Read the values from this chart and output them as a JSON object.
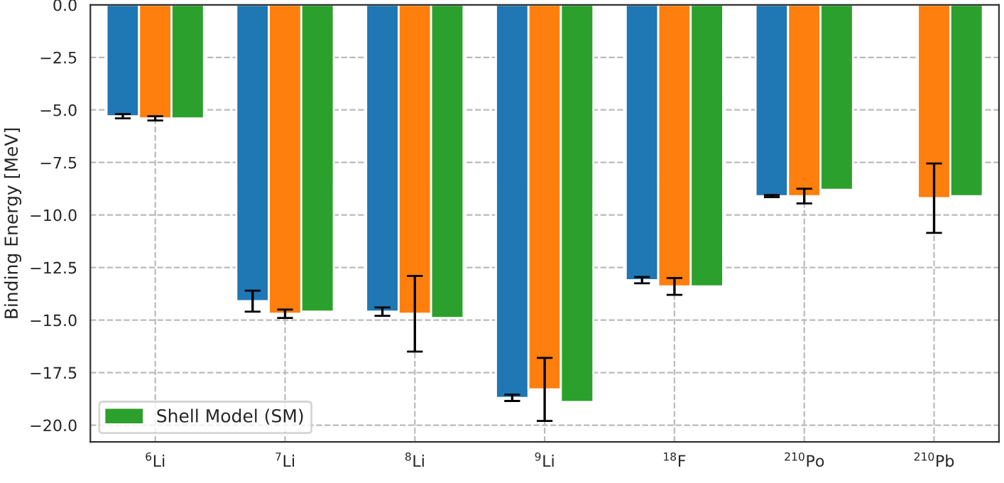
{
  "chart_data": {
    "type": "bar",
    "ylabel": "Binding Energy [MeV]",
    "categories": [
      "$^{6}$Li",
      "$^{7}$Li",
      "$^{8}$Li",
      "$^{9}$Li",
      "$^{18}$F",
      "$^{210}$Po",
      "$^{210}$Pb"
    ],
    "series": [
      {
        "color": "#1f77b4",
        "values": [
          -5.3,
          -14.1,
          -14.6,
          -18.7,
          -13.1,
          -9.1,
          null
        ],
        "errors": [
          0.1,
          0.5,
          0.2,
          0.15,
          0.15,
          0.05,
          null
        ]
      },
      {
        "color": "#ff7f0e",
        "values": [
          -5.4,
          -14.7,
          -14.7,
          -18.3,
          -13.4,
          -9.1,
          -9.2
        ],
        "errors": [
          0.1,
          0.2,
          1.8,
          1.5,
          0.4,
          0.35,
          1.65
        ]
      },
      {
        "name": "Shell Model (SM)",
        "color": "#2ca02c",
        "values": [
          -5.4,
          -14.6,
          -14.9,
          -18.9,
          -13.4,
          -8.8,
          -9.1
        ]
      }
    ],
    "ylim": [
      -20.8,
      0
    ],
    "yticks": [
      {
        "value": 0,
        "label": "0.0"
      },
      {
        "value": -2.5,
        "label": "−2.5"
      },
      {
        "value": -5,
        "label": "−5.0"
      },
      {
        "value": -7.5,
        "label": "−7.5"
      },
      {
        "value": -10,
        "label": "−10.0"
      },
      {
        "value": -12.5,
        "label": "−12.5"
      },
      {
        "value": -15,
        "label": "−15.0"
      },
      {
        "value": -17.5,
        "label": "−17.5"
      },
      {
        "value": -20,
        "label": "−20.0"
      }
    ],
    "grid": true,
    "legend": "bottom left"
  }
}
